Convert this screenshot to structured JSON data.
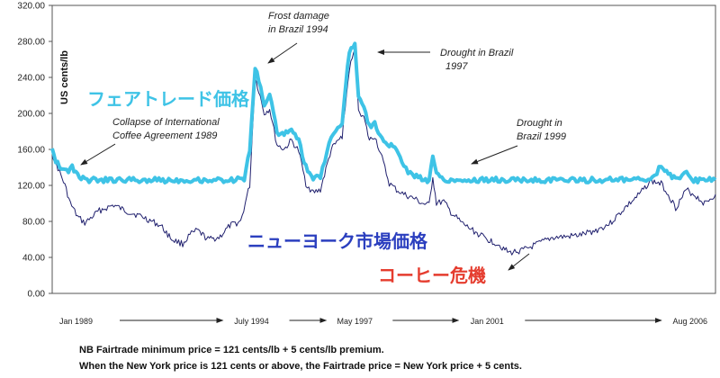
{
  "chart_data": {
    "type": "line",
    "ylabel": "US cents/lb",
    "ylim": [
      0,
      320
    ],
    "yticks": [
      "0.00",
      "40.00",
      "80.00",
      "120.00",
      "160.00",
      "200.00",
      "240.00",
      "280.00",
      "320.00"
    ],
    "x_range": [
      1989.0,
      2007.3
    ],
    "grid": false,
    "xtick_labels": [
      {
        "label": "Jan 1989",
        "x": 1989.0
      },
      {
        "label": "July 1994",
        "x": 1994.5
      },
      {
        "label": "May 1997",
        "x": 1997.35
      },
      {
        "label": "Jan 2001",
        "x": 2001.0
      },
      {
        "label": "Aug 2006",
        "x": 2006.6
      }
    ],
    "series": [
      {
        "name": "フェアトレード価格",
        "color": "#3ec3e6",
        "x": [
          1989.0,
          1989.1,
          1989.25,
          1989.4,
          1989.55,
          1989.7,
          1989.9,
          1990.2,
          1992.0,
          1994.0,
          1994.3,
          1994.45,
          1994.6,
          1994.7,
          1994.85,
          1995.0,
          1995.2,
          1995.4,
          1995.6,
          1995.8,
          1996.0,
          1996.2,
          1996.4,
          1996.7,
          1997.0,
          1997.2,
          1997.35,
          1997.45,
          1997.6,
          1997.75,
          1997.9,
          1998.1,
          1998.3,
          1998.5,
          1998.7,
          1999.0,
          1999.2,
          1999.4,
          1999.5,
          1999.6,
          1999.8,
          2000.0,
          2002.0,
          2004.0,
          2005.5,
          2005.8,
          2006.0,
          2006.2,
          2006.5,
          2006.7,
          2007.3
        ],
        "y": [
          163,
          148,
          140,
          135,
          140,
          132,
          126,
          126,
          126,
          126,
          127,
          160,
          250,
          238,
          210,
          220,
          180,
          175,
          185,
          170,
          140,
          128,
          130,
          175,
          190,
          270,
          278,
          220,
          210,
          185,
          190,
          170,
          165,
          160,
          140,
          130,
          127,
          126,
          150,
          135,
          127,
          126,
          126,
          126,
          126,
          141,
          135,
          126,
          133,
          126,
          126
        ]
      },
      {
        "name": "ニューヨーク市場価格",
        "color": "#20206e",
        "x": [
          1989.0,
          1989.2,
          1989.35,
          1989.5,
          1989.7,
          1989.9,
          1990.3,
          1990.7,
          1991.0,
          1991.5,
          1992.0,
          1992.3,
          1992.6,
          1992.8,
          1993.0,
          1993.3,
          1993.6,
          1993.9,
          1994.2,
          1994.45,
          1994.6,
          1994.7,
          1994.85,
          1995.0,
          1995.2,
          1995.4,
          1995.6,
          1995.8,
          1996.0,
          1996.2,
          1996.4,
          1996.7,
          1997.0,
          1997.2,
          1997.35,
          1997.45,
          1997.6,
          1997.75,
          1997.9,
          1998.1,
          1998.3,
          1998.5,
          1998.7,
          1999.0,
          1999.2,
          1999.4,
          1999.5,
          1999.6,
          1999.8,
          2000.0,
          2000.3,
          2000.6,
          2001.0,
          2001.3,
          2001.6,
          2002.0,
          2002.4,
          2002.8,
          2003.2,
          2003.6,
          2004.0,
          2004.4,
          2004.8,
          2005.2,
          2005.5,
          2005.8,
          2006.0,
          2006.2,
          2006.5,
          2006.7,
          2007.0,
          2007.3
        ],
        "y": [
          155,
          135,
          120,
          100,
          85,
          78,
          92,
          98,
          92,
          85,
          75,
          60,
          55,
          65,
          70,
          60,
          62,
          75,
          80,
          120,
          240,
          225,
          200,
          205,
          165,
          160,
          170,
          158,
          122,
          112,
          115,
          160,
          175,
          250,
          270,
          205,
          195,
          170,
          175,
          150,
          122,
          115,
          110,
          105,
          100,
          98,
          130,
          100,
          102,
          90,
          78,
          70,
          60,
          55,
          45,
          48,
          55,
          62,
          63,
          65,
          70,
          78,
          95,
          110,
          125,
          122,
          110,
          95,
          115,
          110,
          100,
          110
        ]
      }
    ],
    "annotations": [
      {
        "lines": [
          "Frost damage",
          "in Brazil 1994"
        ]
      },
      {
        "lines": [
          "Drought in Brazil",
          "1997"
        ]
      },
      {
        "lines": [
          "Collapse of International",
          "Coffee Agreement 1989"
        ]
      },
      {
        "lines": [
          "Drought in",
          "Brazil 1999"
        ]
      }
    ],
    "series_labels": [
      {
        "text": "フェアトレード価格",
        "color": "#3ec3e6"
      },
      {
        "text": "ニューヨーク市場価格",
        "color": "#2b3fbf"
      },
      {
        "text": "コーヒー危機",
        "color": "#e53c2e"
      }
    ]
  },
  "notes": {
    "line1": "NB Fairtrade minimum price = 121 cents/lb + 5 cents/lb premium.",
    "line2": "When the New York price is 121 cents or above, the Fairtrade price = New York price + 5 cents."
  }
}
